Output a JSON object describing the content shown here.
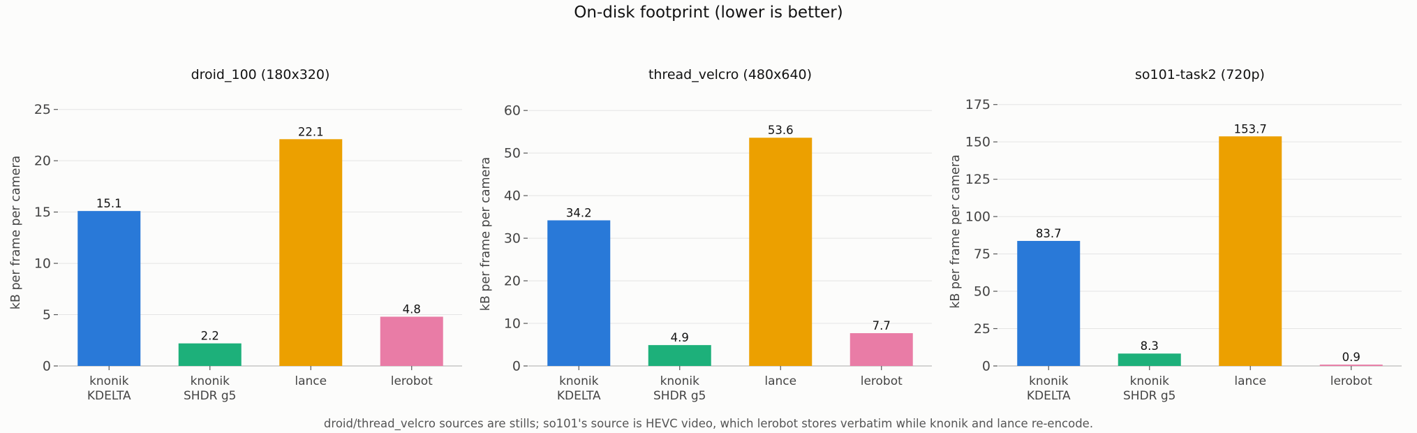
{
  "title": "On-disk footprint  (lower is better)",
  "footnote": "droid/thread_velcro sources are stills; so101's source is HEVC video, which lerobot stores verbatim while knonik and lance re-encode.",
  "chart_data": [
    {
      "type": "bar",
      "title": "droid_100 (180x320)",
      "ylabel": "kB per frame per camera",
      "ylim": [
        0,
        26
      ],
      "yticks": [
        0,
        5,
        10,
        15,
        20,
        25
      ],
      "categories": [
        [
          "knonik",
          "KDELTA"
        ],
        [
          "knonik",
          "SHDR g5"
        ],
        [
          "lance"
        ],
        [
          "lerobot"
        ]
      ],
      "values": [
        15.1,
        2.2,
        22.1,
        4.8
      ],
      "value_labels": [
        "15.1",
        "2.2",
        "22.1",
        "4.8"
      ],
      "colors": [
        "#2979d8",
        "#1db07a",
        "#eca000",
        "#e97ca6"
      ],
      "grid": "horizontal"
    },
    {
      "type": "bar",
      "title": "thread_velcro (480x640)",
      "ylabel": "kB per frame per camera",
      "ylim": [
        0,
        62
      ],
      "yticks": [
        0,
        10,
        20,
        30,
        40,
        50,
        60
      ],
      "categories": [
        [
          "knonik",
          "KDELTA"
        ],
        [
          "knonik",
          "SHDR g5"
        ],
        [
          "lance"
        ],
        [
          "lerobot"
        ]
      ],
      "values": [
        34.2,
        4.9,
        53.6,
        7.7
      ],
      "value_labels": [
        "34.2",
        "4.9",
        "53.6",
        "7.7"
      ],
      "colors": [
        "#2979d8",
        "#1db07a",
        "#eca000",
        "#e97ca6"
      ],
      "grid": "horizontal"
    },
    {
      "type": "bar",
      "title": "so101-task2 (720p)",
      "ylabel": "kB per frame per camera",
      "ylim": [
        0,
        180
      ],
      "yticks": [
        0,
        25,
        50,
        75,
        100,
        125,
        150,
        175
      ],
      "categories": [
        [
          "knonik",
          "KDELTA"
        ],
        [
          "knonik",
          "SHDR g5"
        ],
        [
          "lance"
        ],
        [
          "lerobot"
        ]
      ],
      "values": [
        83.7,
        8.3,
        153.7,
        0.9
      ],
      "value_labels": [
        "83.7",
        "8.3",
        "153.7",
        "0.9"
      ],
      "colors": [
        "#2979d8",
        "#1db07a",
        "#eca000",
        "#e97ca6"
      ],
      "grid": "horizontal"
    }
  ]
}
